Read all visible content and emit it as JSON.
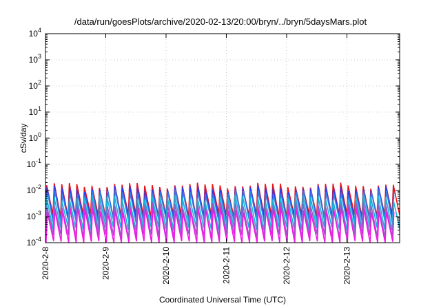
{
  "chart_data": {
    "type": "line",
    "title": "/data/run/goesPlots/archive/2020-02-13/20:00/bryn/../bryn/5daysMars.plot",
    "xlabel": "Coordinated Universal Time (UTC)",
    "ylabel": "cSv/day",
    "yscale": "log",
    "ylim": [
      0.0001,
      10000
    ],
    "y_ticks": [
      {
        "base": "10",
        "exp": "-4",
        "value": 0.0001
      },
      {
        "base": "10",
        "exp": "-3",
        "value": 0.001
      },
      {
        "base": "10",
        "exp": "-2",
        "value": 0.01
      },
      {
        "base": "10",
        "exp": "-1",
        "value": 0.1
      },
      {
        "base": "10",
        "exp": "0",
        "value": 1
      },
      {
        "base": "10",
        "exp": "1",
        "value": 10
      },
      {
        "base": "10",
        "exp": "2",
        "value": 100
      },
      {
        "base": "10",
        "exp": "3",
        "value": 1000
      },
      {
        "base": "10",
        "exp": "4",
        "value": 10000
      }
    ],
    "xlim": [
      "2020-02-08",
      "2020-02-13 21:00"
    ],
    "x_ticks": [
      {
        "label": "2020-2-8",
        "date": "2020-02-08"
      },
      {
        "label": "2020-2-9",
        "date": "2020-02-09"
      },
      {
        "label": "2020-2-10",
        "date": "2020-02-10"
      },
      {
        "label": "2020-2-11",
        "date": "2020-02-11"
      },
      {
        "label": "2020-2-12",
        "date": "2020-02-12"
      },
      {
        "label": "2020-2-13",
        "date": "2020-02-13"
      }
    ],
    "grid": true,
    "legend": "none",
    "sawtooth_period_hours": 3,
    "series": [
      {
        "color": "#e8141c",
        "peak": 0.016,
        "trough": 0.0011
      },
      {
        "color": "#2b3df0",
        "peak": 0.012,
        "trough": 0.00075
      },
      {
        "color": "#2f7fe8",
        "peak": 0.0085,
        "trough": 0.00055
      },
      {
        "color": "#16b4d8",
        "peak": 0.0055,
        "trough": 0.00035
      },
      {
        "color": "#9a58c8",
        "peak": 0.0028,
        "trough": 0.00018
      },
      {
        "color": "#f019e6",
        "peak": 0.0018,
        "trough": 0.0001
      }
    ]
  }
}
